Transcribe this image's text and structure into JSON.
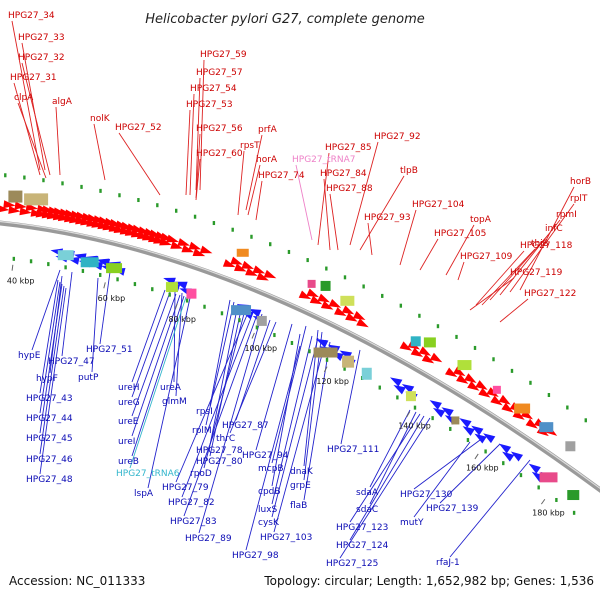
{
  "title": "Helicobacter pylori G27, complete genome",
  "footer": {
    "accession": "Accession: NC_011333",
    "stats": "Topology: circular; Length: 1,652,982 bp; Genes: 1,536"
  },
  "colors": {
    "forward_label": "#cc0000",
    "reverse_label": "#0a0ab4",
    "trna_forward": "#ee82c8",
    "trna_reverse": "#33b6cc",
    "backbone": "#888888",
    "forward_arrow": "#ff0000",
    "reverse_arrow": "#1a1aff",
    "leader_forward": "#dd2222",
    "leader_reverse": "#2222cc"
  },
  "scale_ticks": [
    "40 kbp",
    "60 kbp",
    "80 kbp",
    "100 kbp",
    "120 kbp",
    "140 kbp",
    "160 kbp",
    "180 kbp"
  ],
  "forward_labels": [
    "HPG27_34",
    "HPG27_33",
    "HPG27_32",
    "HPG27_31",
    "clpA",
    "algA",
    "nolK",
    "HPG27_52",
    "HPG27_59",
    "HPG27_57",
    "HPG27_54",
    "HPG27_53",
    "HPG27_56",
    "HPG27_60",
    "rpsT",
    "prfA",
    "horA",
    "HPG27_74",
    "HPG27_tRNA7",
    "HPG27_85",
    "HPG27_84",
    "HPG27_88",
    "HPG27_92",
    "tlpB",
    "HPG27_93",
    "HPG27_104",
    "HPG27_105",
    "topA",
    "HPG27_109",
    "horB",
    "rplT",
    "rpmI",
    "infC",
    "thiS",
    "HPG27_118",
    "HPG27_119",
    "HPG27_122"
  ],
  "reverse_labels": [
    "hypE",
    "HPG27_47",
    "HPG27_51",
    "hypF",
    "putP",
    "HPG27_43",
    "HPG27_44",
    "HPG27_45",
    "HPG27_46",
    "HPG27_48",
    "ureH",
    "ureA",
    "ureG",
    "glmM",
    "ureE",
    "ureI",
    "ureB",
    "HPG27_tRNA6",
    "lspA",
    "rpsI",
    "rplM",
    "HPG27_78",
    "HPG27_80",
    "rpoD",
    "HPG27_79",
    "HPG27_82",
    "HPG27_83",
    "HPG27_89",
    "HPG27_87",
    "thrC",
    "HPG27_94",
    "mcpB",
    "dnaK",
    "grpE",
    "cpdB",
    "luxS",
    "cysK",
    "HPG27_103",
    "flaB",
    "HPG27_98",
    "HPG27_111",
    "sdaA",
    "sdaC",
    "HPG27_123",
    "HPG27_124",
    "HPG27_125",
    "HPG27_130",
    "HPG27_139",
    "mutY",
    "rfaJ-1"
  ]
}
